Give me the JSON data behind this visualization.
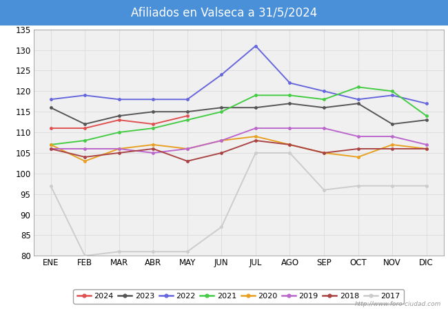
{
  "title": "Afiliados en Valseca a 31/5/2024",
  "title_bg_color": "#4a90d9",
  "title_text_color": "white",
  "ylim": [
    80,
    135
  ],
  "yticks": [
    80,
    85,
    90,
    95,
    100,
    105,
    110,
    115,
    120,
    125,
    130,
    135
  ],
  "months": [
    "ENE",
    "FEB",
    "MAR",
    "ABR",
    "MAY",
    "JUN",
    "JUL",
    "AGO",
    "SEP",
    "OCT",
    "NOV",
    "DIC"
  ],
  "series": {
    "2024": {
      "color": "#e05050",
      "data": [
        111,
        111,
        113,
        112,
        114,
        null,
        null,
        null,
        null,
        null,
        null,
        null
      ]
    },
    "2023": {
      "color": "#555555",
      "data": [
        116,
        112,
        114,
        115,
        115,
        116,
        116,
        117,
        116,
        117,
        112,
        113
      ]
    },
    "2022": {
      "color": "#6666dd",
      "data": [
        118,
        119,
        118,
        118,
        118,
        124,
        131,
        122,
        120,
        118,
        119,
        117
      ]
    },
    "2021": {
      "color": "#44cc44",
      "data": [
        107,
        108,
        110,
        111,
        113,
        115,
        119,
        119,
        118,
        121,
        120,
        114
      ]
    },
    "2020": {
      "color": "#e8a020",
      "data": [
        107,
        103,
        106,
        107,
        106,
        108,
        109,
        107,
        105,
        104,
        107,
        106
      ]
    },
    "2019": {
      "color": "#bb66cc",
      "data": [
        106,
        106,
        106,
        105,
        106,
        108,
        111,
        111,
        111,
        109,
        109,
        107
      ]
    },
    "2018": {
      "color": "#aa4444",
      "data": [
        106,
        104,
        105,
        106,
        103,
        105,
        108,
        107,
        105,
        106,
        106,
        106
      ]
    },
    "2017": {
      "color": "#cccccc",
      "data": [
        97,
        80,
        81,
        81,
        81,
        87,
        105,
        105,
        96,
        97,
        97,
        97
      ]
    }
  },
  "years_order": [
    "2024",
    "2023",
    "2022",
    "2021",
    "2020",
    "2019",
    "2018",
    "2017"
  ],
  "watermark": "http://www.foro-ciudad.com",
  "grid_color": "#dddddd",
  "bg_color": "#f5f5f5",
  "plot_bg": "#f0f0f0"
}
